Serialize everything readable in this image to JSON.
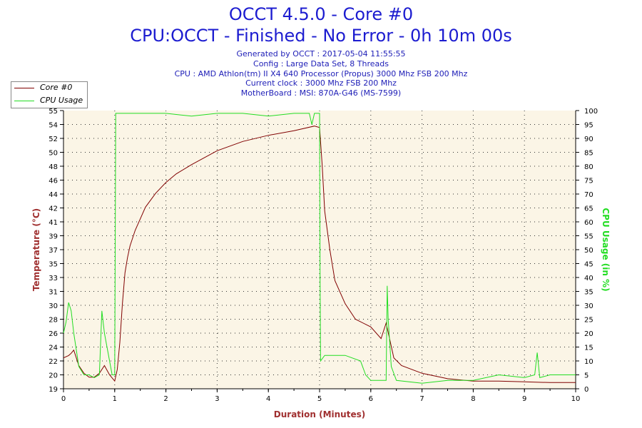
{
  "header": {
    "title_line1": "OCCT 4.5.0 - Core #0",
    "title_line2": "CPU:OCCT - Finished - No Error - 0h 10m 00s",
    "info": [
      "Generated by OCCT : 2017-05-04 11:55:55",
      "Config : Large Data Set, 8 Threads",
      "CPU : AMD Athlon(tm) II X4 640 Processor (Propus) 3000 Mhz FSB 200 Mhz",
      "Current clock : 3000 Mhz FSB 200 Mhz",
      "MotherBoard : MSI: 870A-G46 (MS-7599)"
    ]
  },
  "legend": [
    {
      "label": "Core #0",
      "color": "#800000"
    },
    {
      "label": "CPU Usage",
      "color": "#22dd22"
    }
  ],
  "chart_data": {
    "type": "line",
    "xlabel": "Duration (Minutes)",
    "ylabel_left": "Temperature (°C)",
    "ylabel_right": "CPU Usage (in %)",
    "xlim": [
      0,
      10
    ],
    "ylim_left": [
      19,
      55
    ],
    "ylim_right": [
      0,
      100
    ],
    "x_ticks": [
      "0",
      "1",
      "2",
      "3",
      "4",
      "5",
      "6",
      "7",
      "8",
      "9",
      "10"
    ],
    "y_left_ticks": [
      "19",
      "20",
      "22",
      "24",
      "26",
      "28",
      "30",
      "31",
      "33",
      "35",
      "37",
      "39",
      "41",
      "42",
      "44",
      "46",
      "48",
      "50",
      "52",
      "54",
      "55"
    ],
    "y_right_ticks": [
      "0",
      "5",
      "10",
      "15",
      "20",
      "25",
      "30",
      "35",
      "40",
      "45",
      "50",
      "55",
      "60",
      "65",
      "70",
      "75",
      "80",
      "85",
      "90",
      "95",
      "100"
    ],
    "grid": true,
    "colors": {
      "background": "#fbf5e6",
      "temperature": "#800000",
      "usage": "#22dd22",
      "axis_label": "#a03030",
      "usage_label": "#22dd22",
      "title": "#1c1cd0"
    },
    "series": [
      {
        "name": "Core #0",
        "axis": "left",
        "x": [
          0,
          0.1,
          0.15,
          0.2,
          0.3,
          0.4,
          0.5,
          0.6,
          0.7,
          0.8,
          0.9,
          1.0,
          1.05,
          1.1,
          1.15,
          1.2,
          1.25,
          1.3,
          1.4,
          1.5,
          1.6,
          1.8,
          2.0,
          2.2,
          2.5,
          3.0,
          3.5,
          4.0,
          4.5,
          4.9,
          5.0,
          5.05,
          5.1,
          5.2,
          5.3,
          5.5,
          5.7,
          6.0,
          6.2,
          6.3,
          6.35,
          6.45,
          6.6,
          7.0,
          7.5,
          8.0,
          8.5,
          9.0,
          9.5,
          10.0
        ],
        "y": [
          23,
          23.3,
          23.6,
          24,
          22,
          21,
          20.5,
          20.5,
          21,
          22,
          20.8,
          20,
          21.5,
          25,
          30,
          34,
          36,
          37.5,
          39.5,
          41,
          42.5,
          44.3,
          45.7,
          46.8,
          48,
          49.8,
          51,
          51.8,
          52.4,
          53,
          52.8,
          48,
          42,
          37,
          33,
          30,
          28,
          27,
          25.5,
          27.5,
          26,
          23,
          22,
          21,
          20.3,
          20,
          20,
          19.9,
          19.8,
          19.8
        ]
      },
      {
        "name": "CPU Usage",
        "axis": "right",
        "x": [
          0,
          0.05,
          0.1,
          0.15,
          0.2,
          0.3,
          0.4,
          0.5,
          0.6,
          0.7,
          0.75,
          0.8,
          0.85,
          0.9,
          0.95,
          1.0,
          1.01,
          1.02,
          1.05,
          1.5,
          2.0,
          2.5,
          3.0,
          3.5,
          4.0,
          4.5,
          4.8,
          4.85,
          4.9,
          5.0,
          5.01,
          5.02,
          5.1,
          5.5,
          5.8,
          5.9,
          6.0,
          6.2,
          6.3,
          6.32,
          6.34,
          6.4,
          6.5,
          7.0,
          7.5,
          8.0,
          8.5,
          9.0,
          9.2,
          9.25,
          9.3,
          9.5,
          10.0
        ],
        "y": [
          20,
          24,
          31,
          28,
          20,
          8,
          5,
          5,
          4,
          5,
          28,
          20,
          15,
          10,
          5,
          5,
          50,
          99,
          99,
          99,
          99,
          98,
          99,
          99,
          98,
          99,
          99,
          95,
          99,
          99,
          40,
          10,
          12,
          12,
          10,
          5,
          3,
          3,
          3,
          37,
          25,
          8,
          3,
          2,
          3,
          3,
          5,
          4,
          5,
          13,
          4,
          5,
          5
        ]
      }
    ]
  }
}
